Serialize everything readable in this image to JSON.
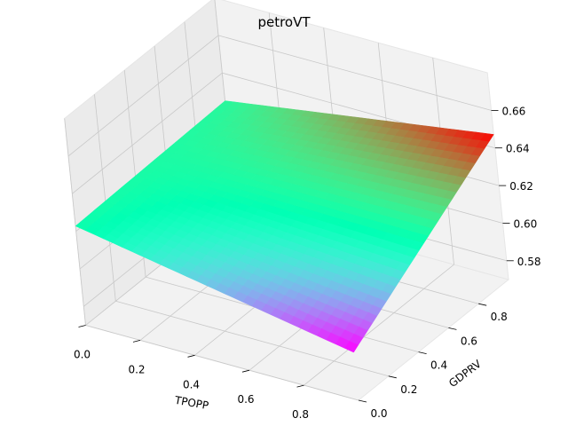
{
  "chart_data": {
    "type": "surface3d",
    "title": "petroVT",
    "xlabel": "TPOPP",
    "ylabel": "GDPRV",
    "zlabel": "",
    "xlim": [
      0.0,
      1.0
    ],
    "ylim": [
      0.0,
      1.0
    ],
    "zlim": [
      0.57,
      0.68
    ],
    "x_ticks": [
      "0.0",
      "0.2",
      "0.4",
      "0.6",
      "0.8"
    ],
    "y_ticks": [
      "0.0",
      "0.2",
      "0.4",
      "0.6",
      "0.8"
    ],
    "z_ticks": [
      "0.58",
      "0.60",
      "0.62",
      "0.64",
      "0.66"
    ],
    "colormap": "rainbow",
    "grid": true,
    "surface_corners": {
      "x0_y0": 0.6228,
      "x1_y0": 0.5955,
      "x0_y1": 0.6252,
      "x1_y1": 0.6472
    },
    "grid_resolution": 30
  }
}
